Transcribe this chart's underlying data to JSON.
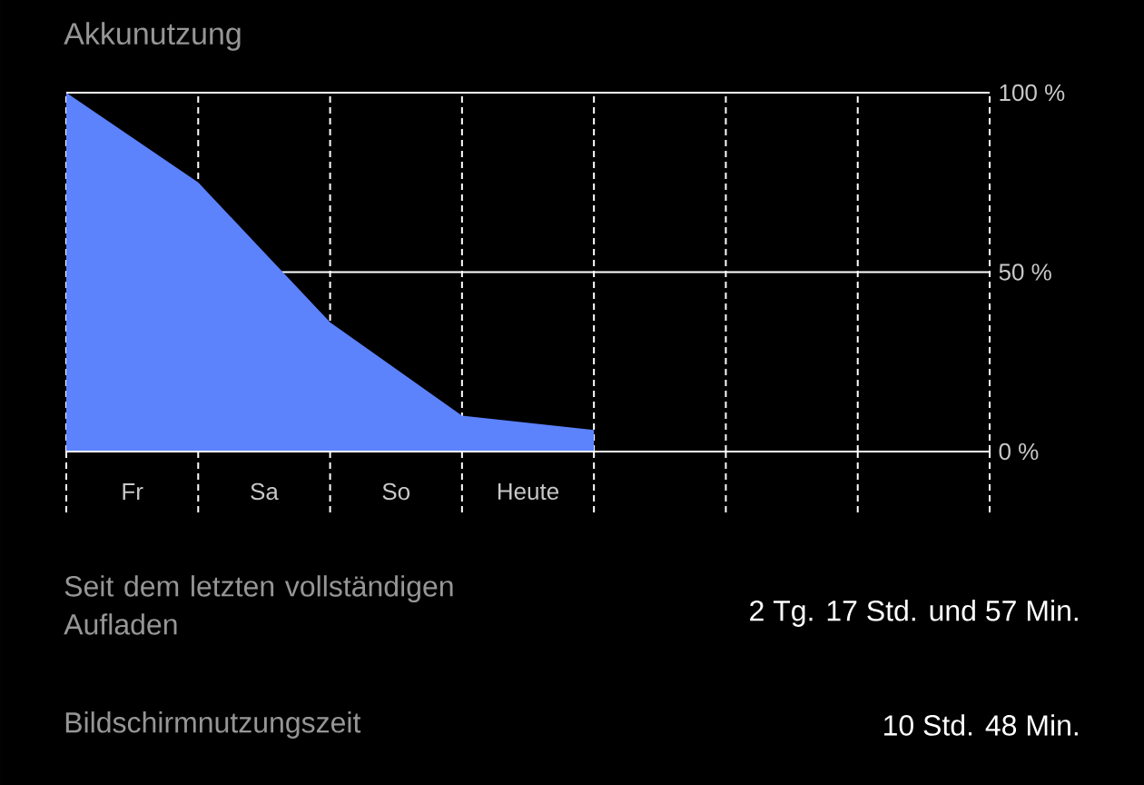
{
  "chart_data": {
    "type": "area",
    "title": "Akkunutzung",
    "categories": [
      null,
      null,
      null,
      null,
      null,
      null,
      null,
      null
    ],
    "series": [
      {
        "color": "#5c82fc",
        "values": [
          100,
          75,
          36,
          10,
          6,
          null,
          null,
          null
        ]
      }
    ],
    "ylim": [
      0,
      100
    ],
    "yticks": [
      {
        "value": 0,
        "label": "0 %"
      },
      {
        "value": 50,
        "label": "50 %"
      },
      {
        "value": 100,
        "label": "100 %"
      }
    ],
    "grid": "x",
    "ref_lines": [
      {
        "axis": "y",
        "value": 50,
        "color": "#ffffff",
        "line_style": "solid"
      }
    ],
    "annotations": [
      "Fr",
      "Sa",
      "So",
      "Heute",
      "Seit dem letzten vollständigen Aufladen",
      "2 Tg. 17 Std. und 57 Min.",
      "Bildschirmnutzungszeit",
      "10 Std. 48 Min."
    ]
  }
}
